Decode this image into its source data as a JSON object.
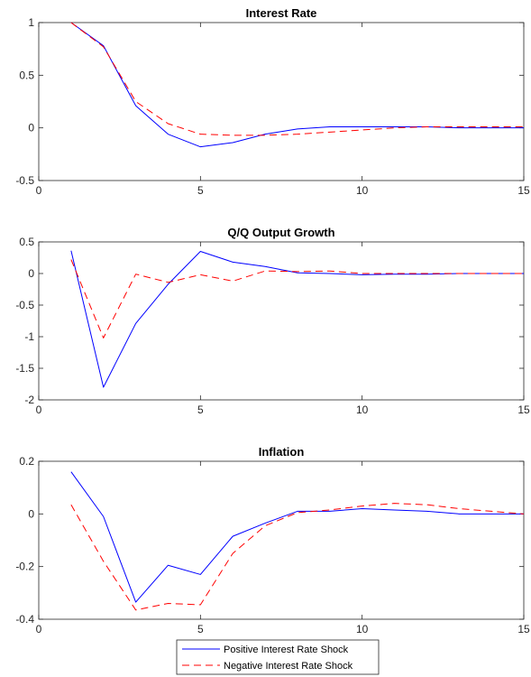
{
  "chart_data": [
    {
      "type": "line",
      "title": "Interest Rate",
      "xlim": [
        0,
        15
      ],
      "ylim": [
        -0.5,
        1
      ],
      "xticks": [
        0,
        5,
        10,
        15
      ],
      "yticks": [
        -0.5,
        0,
        0.5,
        1
      ],
      "x": [
        1,
        2,
        3,
        4,
        5,
        6,
        7,
        8,
        9,
        10,
        11,
        12,
        13,
        14,
        15
      ],
      "series": [
        {
          "name": "Positive Interest Rate Shock",
          "color": "#0000ff",
          "style": "solid",
          "values": [
            1.0,
            0.78,
            0.21,
            -0.06,
            -0.18,
            -0.14,
            -0.06,
            -0.01,
            0.01,
            0.01,
            0.01,
            0.01,
            0.0,
            0.0,
            0.0
          ]
        },
        {
          "name": "Negative Interest Rate Shock",
          "color": "#ff0000",
          "style": "dashed",
          "values": [
            1.0,
            0.77,
            0.25,
            0.04,
            -0.06,
            -0.07,
            -0.07,
            -0.06,
            -0.04,
            -0.02,
            0.0,
            0.01,
            0.01,
            0.01,
            0.01
          ]
        }
      ]
    },
    {
      "type": "line",
      "title": "Q/Q Output Growth",
      "xlim": [
        0,
        15
      ],
      "ylim": [
        -2,
        0.5
      ],
      "xticks": [
        0,
        5,
        10,
        15
      ],
      "yticks": [
        -2,
        -1.5,
        -1,
        -0.5,
        0,
        0.5
      ],
      "x": [
        1,
        2,
        3,
        4,
        5,
        6,
        7,
        8,
        9,
        10,
        11,
        12,
        13,
        14,
        15
      ],
      "series": [
        {
          "name": "Positive Interest Rate Shock",
          "color": "#0000ff",
          "style": "solid",
          "values": [
            0.36,
            -1.8,
            -0.79,
            -0.17,
            0.35,
            0.18,
            0.11,
            0.01,
            0.0,
            -0.02,
            -0.01,
            -0.01,
            0.0,
            0.0,
            0.0
          ]
        },
        {
          "name": "Negative Interest Rate Shock",
          "color": "#ff0000",
          "style": "dashed",
          "values": [
            0.22,
            -1.02,
            -0.01,
            -0.14,
            -0.02,
            -0.12,
            0.04,
            0.03,
            0.04,
            0.0,
            0.0,
            0.0,
            0.0,
            0.0,
            0.0
          ]
        }
      ]
    },
    {
      "type": "line",
      "title": "Inflation",
      "xlim": [
        0,
        15
      ],
      "ylim": [
        -0.4,
        0.2
      ],
      "xticks": [
        0,
        5,
        10,
        15
      ],
      "yticks": [
        -0.4,
        -0.2,
        0,
        0.2
      ],
      "x": [
        1,
        2,
        3,
        4,
        5,
        6,
        7,
        8,
        9,
        10,
        11,
        12,
        13,
        14,
        15
      ],
      "series": [
        {
          "name": "Positive Interest Rate Shock",
          "color": "#0000ff",
          "style": "solid",
          "values": [
            0.16,
            -0.01,
            -0.335,
            -0.195,
            -0.23,
            -0.085,
            -0.035,
            0.01,
            0.01,
            0.02,
            0.015,
            0.01,
            0.0,
            0.0,
            0.0
          ]
        },
        {
          "name": "Negative Interest Rate Shock",
          "color": "#ff0000",
          "style": "dashed",
          "values": [
            0.035,
            -0.18,
            -0.365,
            -0.34,
            -0.345,
            -0.15,
            -0.045,
            0.005,
            0.015,
            0.03,
            0.04,
            0.035,
            0.02,
            0.01,
            0.0
          ]
        }
      ]
    }
  ],
  "legend": {
    "placement": "bottom-center",
    "entries": [
      "Positive Interest Rate Shock",
      "Negative Interest Rate Shock"
    ]
  }
}
